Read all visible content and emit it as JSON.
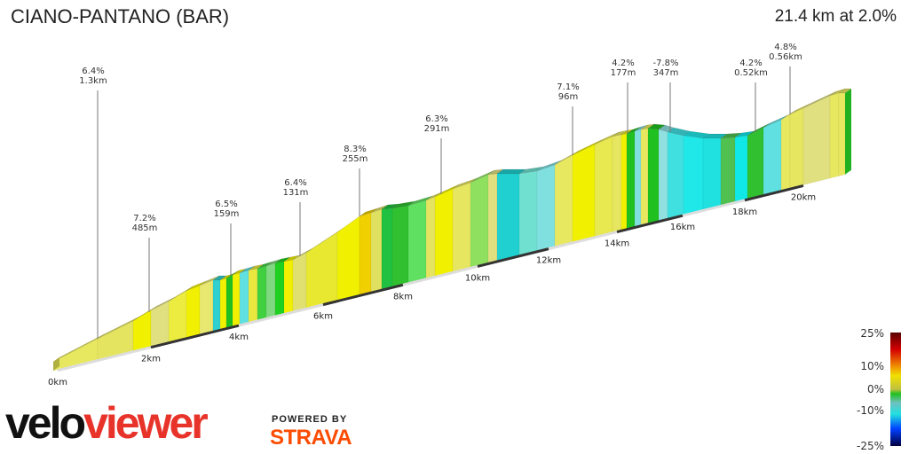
{
  "header": {
    "title": "CIANO-PANTANO (BAR)",
    "summary": "21.4 km at 2.0%"
  },
  "chart_data": {
    "type": "area",
    "title": "CIANO-PANTANO (BAR)",
    "total_distance_km": 21.4,
    "average_grade_pct": 2.0,
    "x_ticks": [
      "0km",
      "2km",
      "4km",
      "6km",
      "8km",
      "10km",
      "12km",
      "14km",
      "16km",
      "18km",
      "20km"
    ],
    "annotations": [
      {
        "grade": "6.4%",
        "length": "1.3km"
      },
      {
        "grade": "7.2%",
        "length": "485m"
      },
      {
        "grade": "6.5%",
        "length": "159m"
      },
      {
        "grade": "6.4%",
        "length": "131m"
      },
      {
        "grade": "8.3%",
        "length": "255m"
      },
      {
        "grade": "6.3%",
        "length": "291m"
      },
      {
        "grade": "7.1%",
        "length": "96m"
      },
      {
        "grade": "4.2%",
        "length": "177m"
      },
      {
        "grade": "-7.8%",
        "length": "347m"
      },
      {
        "grade": "4.2%",
        "length": "0.52km"
      },
      {
        "grade": "4.8%",
        "length": "0.56km"
      }
    ],
    "legend": {
      "ticks": [
        "25%",
        "10%",
        "0%",
        "-10%",
        "-25%"
      ],
      "colors": [
        "#5a0000",
        "#d40000",
        "#f0e000",
        "#20c020",
        "#20e0e0",
        "#0040ff",
        "#000040"
      ]
    }
  },
  "branding": {
    "logo_part1": "velo",
    "logo_part2": "viewer",
    "powered_by": "POWERED BY",
    "strava": "STRAVA"
  }
}
